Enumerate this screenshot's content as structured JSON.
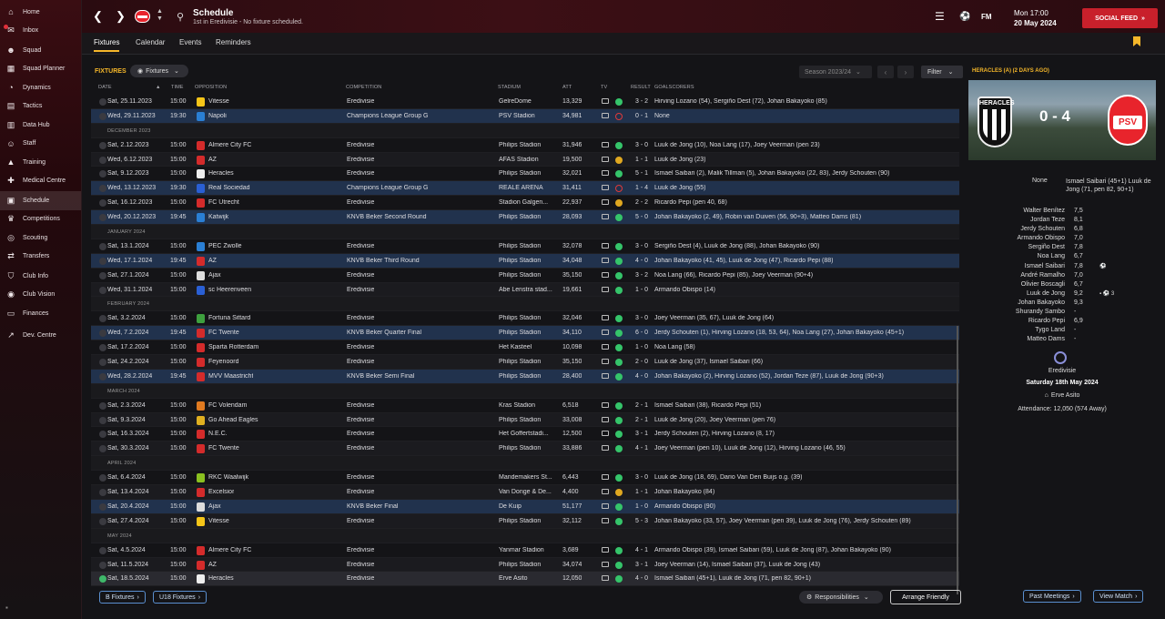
{
  "sidebar": {
    "items": [
      {
        "label": "Home",
        "icon": "house-icon"
      },
      {
        "label": "Inbox",
        "icon": "envelope-icon",
        "badge": true
      },
      {
        "label": "Squad",
        "icon": "people-icon"
      },
      {
        "label": "Squad Planner",
        "icon": "grid-icon"
      },
      {
        "label": "Dynamics",
        "icon": "gauge-icon"
      },
      {
        "label": "Tactics",
        "icon": "board-icon"
      },
      {
        "label": "Data Hub",
        "icon": "chart-icon"
      },
      {
        "label": "Staff",
        "icon": "staff-icon"
      },
      {
        "label": "Training",
        "icon": "cone-icon"
      },
      {
        "label": "Medical Centre",
        "icon": "cross-icon"
      },
      {
        "label": "Schedule",
        "icon": "calendar-icon",
        "active": true
      },
      {
        "label": "Competitions",
        "icon": "trophy-icon"
      },
      {
        "label": "Scouting",
        "icon": "binoculars-icon"
      },
      {
        "label": "Transfers",
        "icon": "transfer-icon"
      },
      {
        "label": "Club Info",
        "icon": "shield-icon"
      },
      {
        "label": "Club Vision",
        "icon": "eye-icon"
      },
      {
        "label": "Finances",
        "icon": "money-icon"
      },
      {
        "label": "Dev. Centre",
        "icon": "trend-icon"
      }
    ]
  },
  "header": {
    "title": "Schedule",
    "subtitle": "1st in Eredivisie - No fixture scheduled.",
    "fm": "FM",
    "time": "Mon 17:00",
    "date": "20 May 2024",
    "social": "SOCIAL FEED"
  },
  "tabs": [
    "Fixtures",
    "Calendar",
    "Events",
    "Reminders"
  ],
  "toolbar": {
    "label": "FIXTURES",
    "dropdown": "Fixtures",
    "season": "Season 2023/24",
    "filter": "Filter"
  },
  "columns": {
    "date": "DATE",
    "time": "TIME",
    "opposition": "OPPOSITION",
    "competition": "COMPETITION",
    "stadium": "STADIUM",
    "att": "ATT",
    "tv": "TV",
    "result": "RESULT",
    "goalscorers": "GOALSCORERS"
  },
  "rows": [
    {
      "d": "Sat, 25.11.2023",
      "t": "15:00",
      "o": "Vitesse",
      "c": "Eredivisie",
      "s": "GelreDome",
      "a": "13,329",
      "r": "W",
      "sc": "3 - 2",
      "g": "Hirving Lozano (54), Sergiño Dest (72), Johan Bakayoko (85)",
      "col": "#f5c518"
    },
    {
      "d": "Wed, 29.11.2023",
      "t": "19:30",
      "o": "Napoli",
      "c": "Champions League Group G",
      "s": "PSV Stadion",
      "a": "34,981",
      "r": "L",
      "sc": "0 - 1",
      "g": "None",
      "col": "#2a7fd4",
      "hl": true
    },
    {
      "m": "DECEMBER 2023"
    },
    {
      "d": "Sat, 2.12.2023",
      "t": "15:00",
      "o": "Almere City FC",
      "c": "Eredivisie",
      "s": "Philips Stadion",
      "a": "31,946",
      "r": "W",
      "sc": "3 - 0",
      "g": "Luuk de Jong (10), Noa Lang (17), Joey Veerman (pen 23)",
      "col": "#d42b2b"
    },
    {
      "d": "Wed, 6.12.2023",
      "t": "15:00",
      "o": "AZ",
      "c": "Eredivisie",
      "s": "AFAS Stadion",
      "a": "19,500",
      "r": "D",
      "sc": "1 - 1",
      "g": "Luuk de Jong (23)",
      "col": "#d42b2b"
    },
    {
      "d": "Sat, 9.12.2023",
      "t": "15:00",
      "o": "Heracles",
      "c": "Eredivisie",
      "s": "Philips Stadion",
      "a": "32,021",
      "r": "W",
      "sc": "5 - 1",
      "g": "Ismael Saibari (2), Malik Tillman (5), Johan Bakayoko (22, 83), Jerdy Schouten (90)",
      "col": "#eee"
    },
    {
      "d": "Wed, 13.12.2023",
      "t": "19:30",
      "o": "Real Sociedad",
      "c": "Champions League Group G",
      "s": "REALE ARENA",
      "a": "31,411",
      "r": "L",
      "sc": "1 - 4",
      "g": "Luuk de Jong (55)",
      "col": "#2a5fd4",
      "hl": true
    },
    {
      "d": "Sat, 16.12.2023",
      "t": "15:00",
      "o": "FC Utrecht",
      "c": "Eredivisie",
      "s": "Stadion Galgen...",
      "a": "22,937",
      "r": "D",
      "sc": "2 - 2",
      "g": "Ricardo Pepi (pen 40, 68)",
      "col": "#d42b2b"
    },
    {
      "d": "Wed, 20.12.2023",
      "t": "19:45",
      "o": "Katwijk",
      "c": "KNVB Beker Second Round",
      "s": "Philips Stadion",
      "a": "28,093",
      "r": "W",
      "sc": "5 - 0",
      "g": "Johan Bakayoko (2, 49), Robin van Duiven (56, 90+3), Matteo Dams (81)",
      "col": "#2a7fd4",
      "hl": true
    },
    {
      "m": "JANUARY 2024"
    },
    {
      "d": "Sat, 13.1.2024",
      "t": "15:00",
      "o": "PEC Zwolle",
      "c": "Eredivisie",
      "s": "Philips Stadion",
      "a": "32,078",
      "r": "W",
      "sc": "3 - 0",
      "g": "Sergiño Dest (4), Luuk de Jong (88), Johan Bakayoko (90)",
      "col": "#2a7fd4"
    },
    {
      "d": "Wed, 17.1.2024",
      "t": "19:45",
      "o": "AZ",
      "c": "KNVB Beker Third Round",
      "s": "Philips Stadion",
      "a": "34,048",
      "r": "W",
      "sc": "4 - 0",
      "g": "Johan Bakayoko (41, 45), Luuk de Jong (47), Ricardo Pepi (88)",
      "col": "#d42b2b",
      "hl": true
    },
    {
      "d": "Sat, 27.1.2024",
      "t": "15:00",
      "o": "Ajax",
      "c": "Eredivisie",
      "s": "Philips Stadion",
      "a": "35,150",
      "r": "W",
      "sc": "3 - 2",
      "g": "Noa Lang (66), Ricardo Pepi (85), Joey Veerman (90+4)",
      "col": "#ddd"
    },
    {
      "d": "Wed, 31.1.2024",
      "t": "15:00",
      "o": "sc Heerenveen",
      "c": "Eredivisie",
      "s": "Abe Lenstra stad...",
      "a": "19,661",
      "r": "W",
      "sc": "1 - 0",
      "g": "Armando Obispo (14)",
      "col": "#2a5fd4"
    },
    {
      "m": "FEBRUARY 2024"
    },
    {
      "d": "Sat, 3.2.2024",
      "t": "15:00",
      "o": "Fortuna Sittard",
      "c": "Eredivisie",
      "s": "Philips Stadion",
      "a": "32,046",
      "r": "W",
      "sc": "3 - 0",
      "g": "Joey Veerman (35, 67), Luuk de Jong (64)",
      "col": "#3ea03e"
    },
    {
      "d": "Wed, 7.2.2024",
      "t": "19:45",
      "o": "FC Twente",
      "c": "KNVB Beker Quarter Final",
      "s": "Philips Stadion",
      "a": "34,110",
      "r": "W",
      "sc": "6 - 0",
      "g": "Jerdy Schouten (1), Hirving Lozano (18, 53, 64), Noa Lang (27), Johan Bakayoko (45+1)",
      "col": "#d42b2b",
      "hl": true
    },
    {
      "d": "Sat, 17.2.2024",
      "t": "15:00",
      "o": "Sparta Rotterdam",
      "c": "Eredivisie",
      "s": "Het Kasteel",
      "a": "10,098",
      "r": "W",
      "sc": "1 - 0",
      "g": "Noa Lang (58)",
      "col": "#d42b2b"
    },
    {
      "d": "Sat, 24.2.2024",
      "t": "15:00",
      "o": "Feyenoord",
      "c": "Eredivisie",
      "s": "Philips Stadion",
      "a": "35,150",
      "r": "W",
      "sc": "2 - 0",
      "g": "Luuk de Jong (37), Ismael Saibari (66)",
      "col": "#d42b2b"
    },
    {
      "d": "Wed, 28.2.2024",
      "t": "19:45",
      "o": "MVV Maastricht",
      "c": "KNVB Beker Semi Final",
      "s": "Philips Stadion",
      "a": "28,400",
      "r": "W",
      "sc": "4 - 0",
      "g": "Johan Bakayoko (2), Hirving Lozano (52), Jordan Teze (87), Luuk de Jong (90+3)",
      "col": "#d42b2b",
      "hl": true
    },
    {
      "m": "MARCH 2024"
    },
    {
      "d": "Sat, 2.3.2024",
      "t": "15:00",
      "o": "FC Volendam",
      "c": "Eredivisie",
      "s": "Kras Stadion",
      "a": "6,518",
      "r": "W",
      "sc": "2 - 1",
      "g": "Ismael Saibari (38), Ricardo Pepi (51)",
      "col": "#e07a20"
    },
    {
      "d": "Sat, 9.3.2024",
      "t": "15:00",
      "o": "Go Ahead Eagles",
      "c": "Eredivisie",
      "s": "Philips Stadion",
      "a": "33,008",
      "r": "W",
      "sc": "2 - 1",
      "g": "Luuk de Jong (20), Joey Veerman (pen 76)",
      "col": "#e0b020"
    },
    {
      "d": "Sat, 16.3.2024",
      "t": "15:00",
      "o": "N.E.C.",
      "c": "Eredivisie",
      "s": "Het Goffertstadi...",
      "a": "12,500",
      "r": "W",
      "sc": "3 - 1",
      "g": "Jerdy Schouten (2), Hirving Lozano (8, 17)",
      "col": "#d42b2b"
    },
    {
      "d": "Sat, 30.3.2024",
      "t": "15:00",
      "o": "FC Twente",
      "c": "Eredivisie",
      "s": "Philips Stadion",
      "a": "33,886",
      "r": "W",
      "sc": "4 - 1",
      "g": "Joey Veerman (pen 10), Luuk de Jong (12), Hirving Lozano (46, 55)",
      "col": "#d42b2b"
    },
    {
      "m": "APRIL 2024"
    },
    {
      "d": "Sat, 6.4.2024",
      "t": "15:00",
      "o": "RKC Waalwijk",
      "c": "Eredivisie",
      "s": "Mandemakers St...",
      "a": "6,443",
      "r": "W",
      "sc": "3 - 0",
      "g": "Luuk de Jong (18, 69), Dario Van Den Buijs o.g. (39)",
      "col": "#8ac020"
    },
    {
      "d": "Sat, 13.4.2024",
      "t": "15:00",
      "o": "Excelsior",
      "c": "Eredivisie",
      "s": "Van Donge & De...",
      "a": "4,400",
      "r": "D",
      "sc": "1 - 1",
      "g": "Johan Bakayoko (84)",
      "col": "#d42b2b"
    },
    {
      "d": "Sat, 20.4.2024",
      "t": "15:00",
      "o": "Ajax",
      "c": "KNVB Beker Final",
      "s": "De Kuip",
      "a": "51,177",
      "r": "W",
      "sc": "1 - 0",
      "g": "Armando Obispo (90)",
      "col": "#ddd",
      "hl": true
    },
    {
      "d": "Sat, 27.4.2024",
      "t": "15:00",
      "o": "Vitesse",
      "c": "Eredivisie",
      "s": "Philips Stadion",
      "a": "32,112",
      "r": "W",
      "sc": "5 - 3",
      "g": "Johan Bakayoko (33, 57), Joey Veerman (pen 39), Luuk de Jong (76), Jerdy Schouten (89)",
      "col": "#f5c518"
    },
    {
      "m": "MAY 2024"
    },
    {
      "d": "Sat, 4.5.2024",
      "t": "15:00",
      "o": "Almere City FC",
      "c": "Eredivisie",
      "s": "Yanmar Stadion",
      "a": "3,689",
      "r": "W",
      "sc": "4 - 1",
      "g": "Armando Obispo (39), Ismael Saibari (59), Luuk de Jong (87), Johan Bakayoko (90)",
      "col": "#d42b2b"
    },
    {
      "d": "Sat, 11.5.2024",
      "t": "15:00",
      "o": "AZ",
      "c": "Eredivisie",
      "s": "Philips Stadion",
      "a": "34,074",
      "r": "W",
      "sc": "3 - 1",
      "g": "Joey Veerman (14), Ismael Saibari (37), Luuk de Jong (43)",
      "col": "#d42b2b"
    },
    {
      "d": "Sat, 18.5.2024",
      "t": "15:00",
      "o": "Heracles",
      "c": "Eredivisie",
      "s": "Erve Asito",
      "a": "12,050",
      "r": "W",
      "sc": "4 - 0",
      "g": "Ismael Saibari (45+1), Luuk de Jong (71, pen 82, 90+1)",
      "col": "#eee",
      "sel": true
    }
  ],
  "bottom": {
    "b_fixtures": "B Fixtures",
    "u18_fixtures": "U18 Fixtures",
    "responsibilities": "Responsibilities",
    "arrange": "Arrange Friendly"
  },
  "side": {
    "header": "HERACLES (A) (2 DAYS AGO)",
    "home_crest": "HERACLES",
    "away_crest": "PSV",
    "score": "0 - 4",
    "home_goals": "None",
    "away_goals": "Ismael Saibari (45+1) Luuk de Jong (71, pen 82, 90+1)",
    "players": [
      {
        "n": "Walter Benítez",
        "v": "7,5"
      },
      {
        "n": "Jordan Teze",
        "v": "8,1"
      },
      {
        "n": "Jerdy Schouten",
        "v": "6,8"
      },
      {
        "n": "Armando Obispo",
        "v": "7,0"
      },
      {
        "n": "Sergiño Dest",
        "v": "7,8"
      },
      {
        "n": "Noa Lang",
        "v": "6,7"
      },
      {
        "n": "Ismael Saibari",
        "v": "7,8",
        "x": "⚽"
      },
      {
        "n": "André Ramalho",
        "v": "7,0"
      },
      {
        "n": "Olivier Boscagli",
        "v": "6,7"
      },
      {
        "n": "Luuk de Jong",
        "v": "9,2",
        "x": "▪ ⚽ 3"
      },
      {
        "n": "Johan Bakayoko",
        "v": "9,3"
      },
      {
        "n": "Shurandy Sambo",
        "v": "-"
      },
      {
        "n": "Ricardo Pepi",
        "v": "6,9"
      },
      {
        "n": "Tygo Land",
        "v": "-"
      },
      {
        "n": "Matteo Dams",
        "v": "-"
      }
    ],
    "competition": "Eredivisie",
    "date": "Saturday 18th May 2024",
    "stadium": "Erve Asito",
    "attendance": "Attendance: 12,050 (574 Away)",
    "past": "Past Meetings",
    "view": "View Match"
  }
}
